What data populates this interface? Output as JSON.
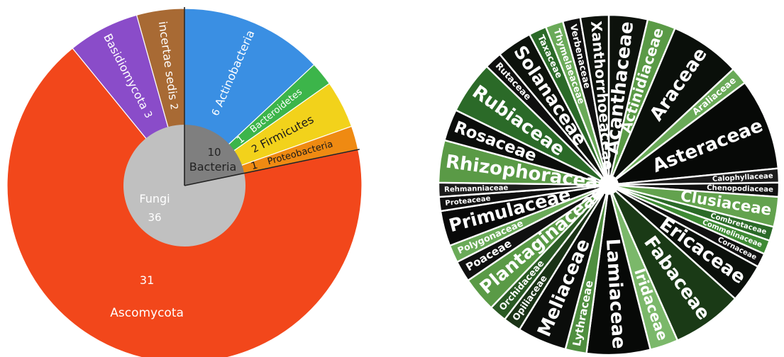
{
  "chart_data": [
    {
      "type": "pie",
      "inner_pie": {
        "slices": [
          {
            "name": "Fungi",
            "value": 36,
            "color": "#c0c0c0"
          },
          {
            "name": "Bacteria",
            "value": 10,
            "color": "#7f7f7f"
          }
        ]
      },
      "outer_ring": {
        "slices": [
          {
            "name": "Actinobacteria",
            "value": 6,
            "group": "Bacteria",
            "color": "#3a8fe3"
          },
          {
            "name": "Bacteroidetes",
            "value": 1,
            "group": "Bacteria",
            "color": "#3cb54a"
          },
          {
            "name": "Firmicutes",
            "value": 2,
            "group": "Bacteria",
            "color": "#f2d21b"
          },
          {
            "name": "Proteobacteria",
            "value": 1,
            "group": "Bacteria",
            "color": "#ef8a12"
          },
          {
            "name": "Ascomycota",
            "value": 31,
            "group": "Fungi",
            "color": "#f2471b"
          },
          {
            "name": "Basidiomycota",
            "value": 3,
            "group": "Fungi",
            "color": "#8a4cc9"
          },
          {
            "name": "incertae sedis",
            "value": 2,
            "group": "Fungi",
            "color": "#a86a34"
          }
        ]
      }
    },
    {
      "type": "pie",
      "slices": [
        {
          "name": "Acanthaceae",
          "value": 2.2,
          "color": "#0d120c"
        },
        {
          "name": "Actinidiaceae",
          "value": 1.6,
          "color": "#5a9a46"
        },
        {
          "name": "Araceae",
          "value": 4.0,
          "color": "#0a0f0a"
        },
        {
          "name": "Araliaceae",
          "value": 1.0,
          "color": "#6aaa58"
        },
        {
          "name": "Asteraceae",
          "value": 5.2,
          "color": "#070907"
        },
        {
          "name": "Calophyllaceae",
          "value": 0.8,
          "color": "#1c1c1c"
        },
        {
          "name": "Chenopodiaceae",
          "value": 0.8,
          "color": "#101010"
        },
        {
          "name": "Clusiaceae",
          "value": 1.7,
          "color": "#63a24e"
        },
        {
          "name": "Combretaceae",
          "value": 0.8,
          "color": "#2b6a28"
        },
        {
          "name": "Commelinaceae",
          "value": 0.8,
          "color": "#3f8a35"
        },
        {
          "name": "Cornaceae",
          "value": 0.8,
          "color": "#111111"
        },
        {
          "name": "Ericaceae",
          "value": 2.2,
          "color": "#0b100b"
        },
        {
          "name": "Fabaceae",
          "value": 4.0,
          "color": "#1a3a16"
        },
        {
          "name": "Iridaceae",
          "value": 1.6,
          "color": "#7bb86a"
        },
        {
          "name": "Lamiaceae",
          "value": 3.6,
          "color": "#070907"
        },
        {
          "name": "Lythraceae",
          "value": 1.2,
          "color": "#4f8e3f"
        },
        {
          "name": "Meliaceae",
          "value": 2.8,
          "color": "#0b0d0b"
        },
        {
          "name": "Opiliaceae",
          "value": 1.0,
          "color": "#1a3216"
        },
        {
          "name": "Orchidaceae",
          "value": 1.0,
          "color": "#2a5a24"
        },
        {
          "name": "Plantaginaceae",
          "value": 2.0,
          "color": "#5a9a46"
        },
        {
          "name": "Poaceae",
          "value": 1.2,
          "color": "#101010"
        },
        {
          "name": "Polygonaceae",
          "value": 1.0,
          "color": "#6aaa58"
        },
        {
          "name": "Primulaceae",
          "value": 2.0,
          "color": "#090909"
        },
        {
          "name": "Proteaceae",
          "value": 0.8,
          "color": "#101010"
        },
        {
          "name": "Rehmanniaceae",
          "value": 0.8,
          "color": "#1c1c1c"
        },
        {
          "name": "Rhizophoraceae",
          "value": 2.4,
          "color": "#5a9a46"
        },
        {
          "name": "Rosaceae",
          "value": 1.8,
          "color": "#0b0d0b"
        },
        {
          "name": "Rubiaceae",
          "value": 3.0,
          "color": "#2b6a28"
        },
        {
          "name": "Rutaceae",
          "value": 1.0,
          "color": "#0f0f0f"
        },
        {
          "name": "Solanaceae",
          "value": 2.0,
          "color": "#0d120c"
        },
        {
          "name": "Taxaceae",
          "value": 1.0,
          "color": "#2b6a28"
        },
        {
          "name": "Thymelaeaceae",
          "value": 1.0,
          "color": "#6aaa58"
        },
        {
          "name": "Verbenaceae",
          "value": 1.0,
          "color": "#101010"
        },
        {
          "name": "Xanthorrhoeaceae",
          "value": 1.6,
          "color": "#0d120c"
        }
      ]
    }
  ]
}
